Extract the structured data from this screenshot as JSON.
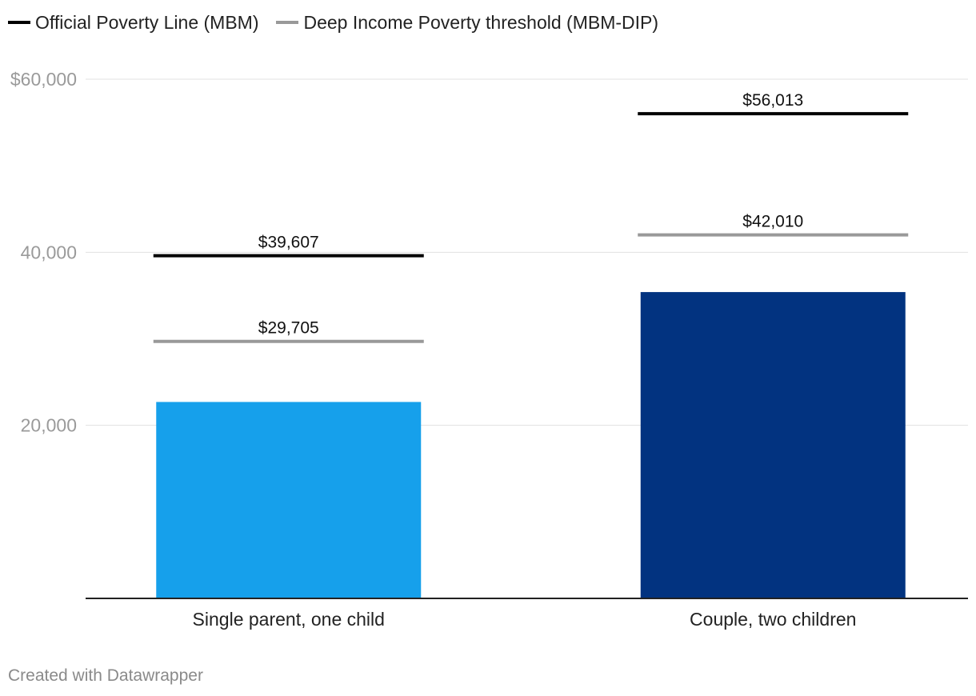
{
  "legend": [
    {
      "label": "Official Poverty Line (MBM)",
      "color": "#000000"
    },
    {
      "label": "Deep Income Poverty threshold (MBM-DIP)",
      "color": "#999999"
    }
  ],
  "footer": "Created with Datawrapper",
  "chart_data": {
    "type": "bar",
    "title": "",
    "xlabel": "",
    "ylabel": "",
    "ylim": [
      0,
      60000
    ],
    "y_ticks": [
      {
        "value": 20000,
        "label": "20,000"
      },
      {
        "value": 40000,
        "label": "40,000"
      },
      {
        "value": 60000,
        "label": "$60,000"
      }
    ],
    "categories": [
      "Single parent, one child",
      "Couple, two children"
    ],
    "bars": [
      {
        "category": "Single parent, one child",
        "value": 22700,
        "color": "#16a0eb"
      },
      {
        "category": "Couple, two children",
        "value": 35400,
        "color": "#023380"
      }
    ],
    "lines": [
      {
        "series": "Official Poverty Line (MBM)",
        "color": "#000000",
        "values": [
          39607,
          56013
        ],
        "labels": [
          "$39,607",
          "$56,013"
        ]
      },
      {
        "series": "Deep Income Poverty threshold (MBM-DIP)",
        "color": "#999999",
        "values": [
          29705,
          42010
        ],
        "labels": [
          "$29,705",
          "$42,010"
        ]
      }
    ],
    "grid": true
  }
}
